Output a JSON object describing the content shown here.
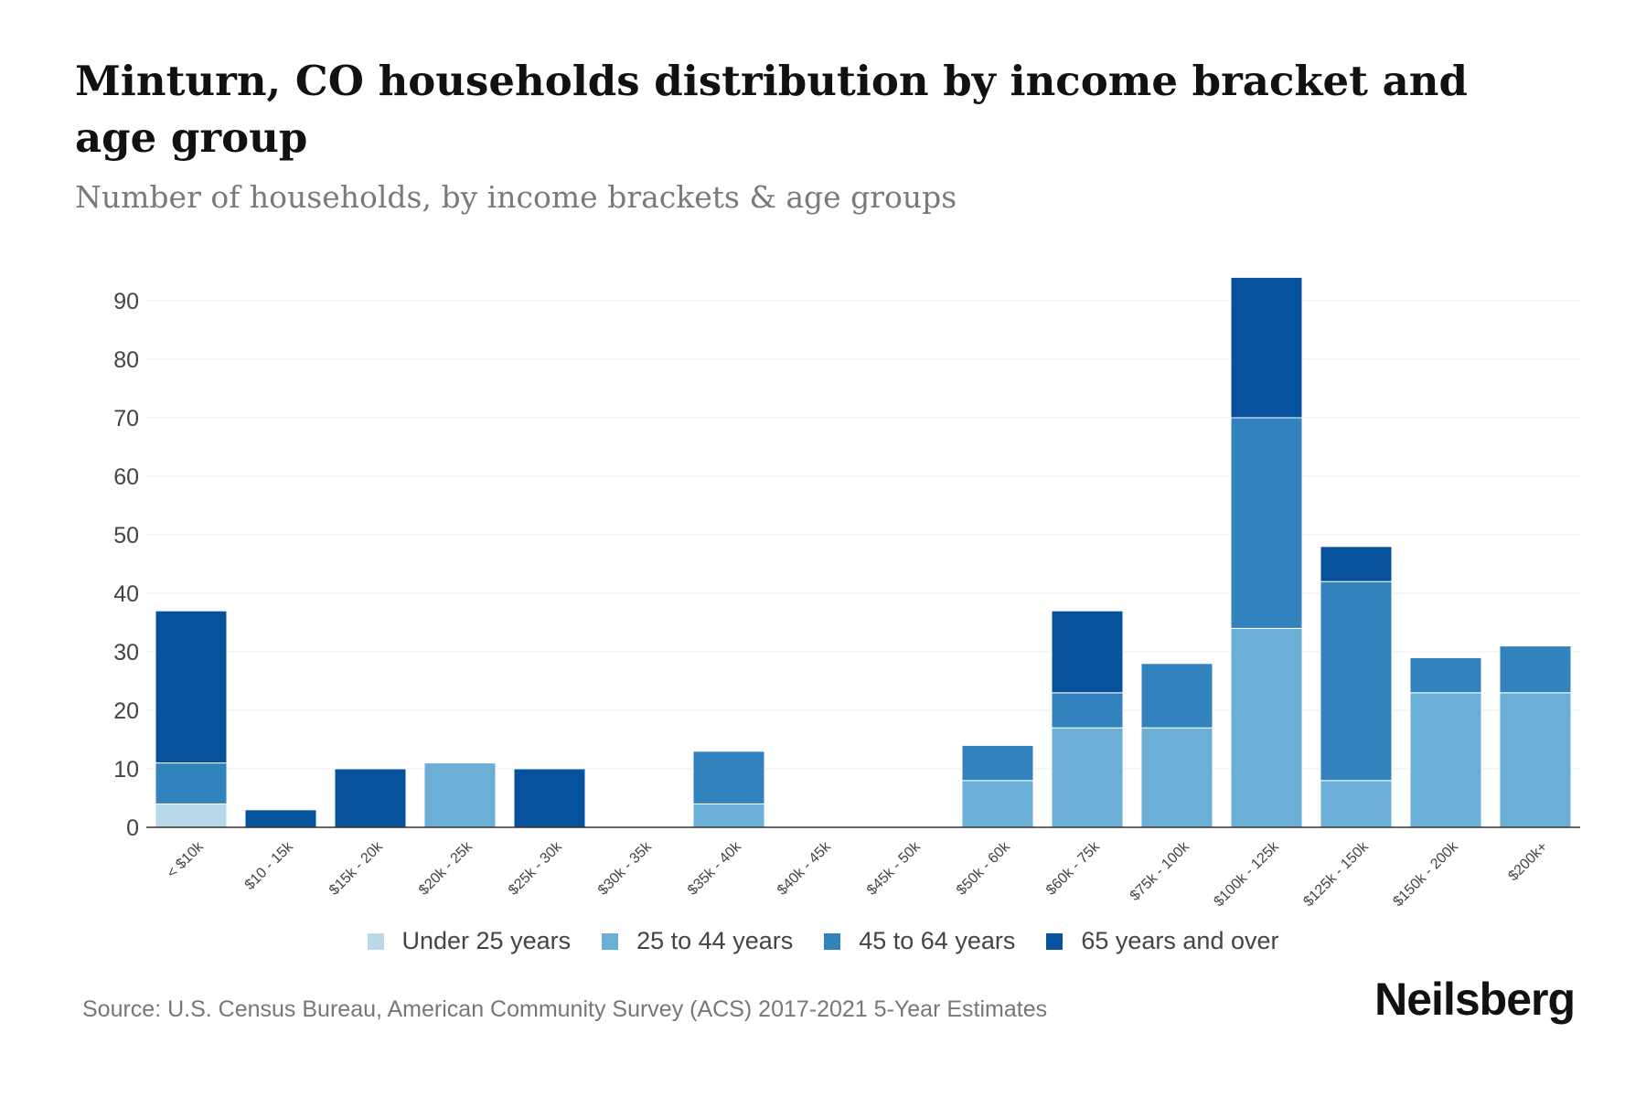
{
  "title": "Minturn, CO households distribution by income bracket and age group",
  "subtitle": "Number of households, by income brackets & age groups",
  "source": "Source: U.S. Census Bureau, American Community Survey (ACS) 2017-2021 5-Year Estimates",
  "brand": "Neilsberg",
  "colors": {
    "under25": "#b9d8e9",
    "age25to44": "#6baed6",
    "age45to64": "#3182bd",
    "age65plus": "#08519c",
    "grid": "#eeeeee",
    "axis": "#333333"
  },
  "chart_data": {
    "type": "bar",
    "stacked": true,
    "title": "Minturn, CO households distribution by income bracket and age group",
    "ylabel": "",
    "xlabel": "",
    "ylim": [
      0,
      95
    ],
    "yticks": [
      0,
      10,
      20,
      30,
      40,
      50,
      60,
      70,
      80,
      90
    ],
    "categories": [
      "< $10k",
      "$10 - 15k",
      "$15k - 20k",
      "$20k - 25k",
      "$25k - 30k",
      "$30k - 35k",
      "$35k - 40k",
      "$40k - 45k",
      "$45k - 50k",
      "$50k - 60k",
      "$60k - 75k",
      "$75k - 100k",
      "$100k - 125k",
      "$125k - 150k",
      "$150k - 200k",
      "$200k+"
    ],
    "series": [
      {
        "name": "Under 25 years",
        "color": "#b9d8e9",
        "values": [
          4,
          0,
          0,
          0,
          0,
          0,
          0,
          0,
          0,
          0,
          0,
          0,
          0,
          0,
          0,
          0
        ]
      },
      {
        "name": "25 to 44 years",
        "color": "#6baed6",
        "values": [
          0,
          0,
          0,
          11,
          0,
          0,
          4,
          0,
          0,
          8,
          17,
          17,
          34,
          8,
          23,
          23
        ]
      },
      {
        "name": "45 to 64 years",
        "color": "#3182bd",
        "values": [
          7,
          0,
          0,
          0,
          0,
          0,
          9,
          0,
          0,
          6,
          6,
          11,
          36,
          34,
          6,
          8
        ]
      },
      {
        "name": "65 years and over",
        "color": "#08519c",
        "values": [
          26,
          3,
          10,
          0,
          10,
          0,
          0,
          0,
          0,
          0,
          14,
          0,
          24,
          6,
          0,
          0
        ]
      }
    ],
    "legend_position": "bottom-center",
    "grid": true
  }
}
